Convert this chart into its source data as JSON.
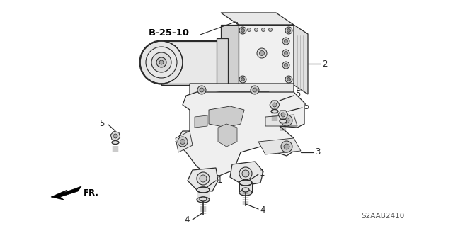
{
  "bg_color": "#ffffff",
  "line_color": "#2a2a2a",
  "title_ref": "B-25-10",
  "part_number": "S2AAB2410",
  "fr_label": "FR.",
  "lw": 0.9,
  "label_fontsize": 8.5,
  "ref_fontsize": 9.5
}
